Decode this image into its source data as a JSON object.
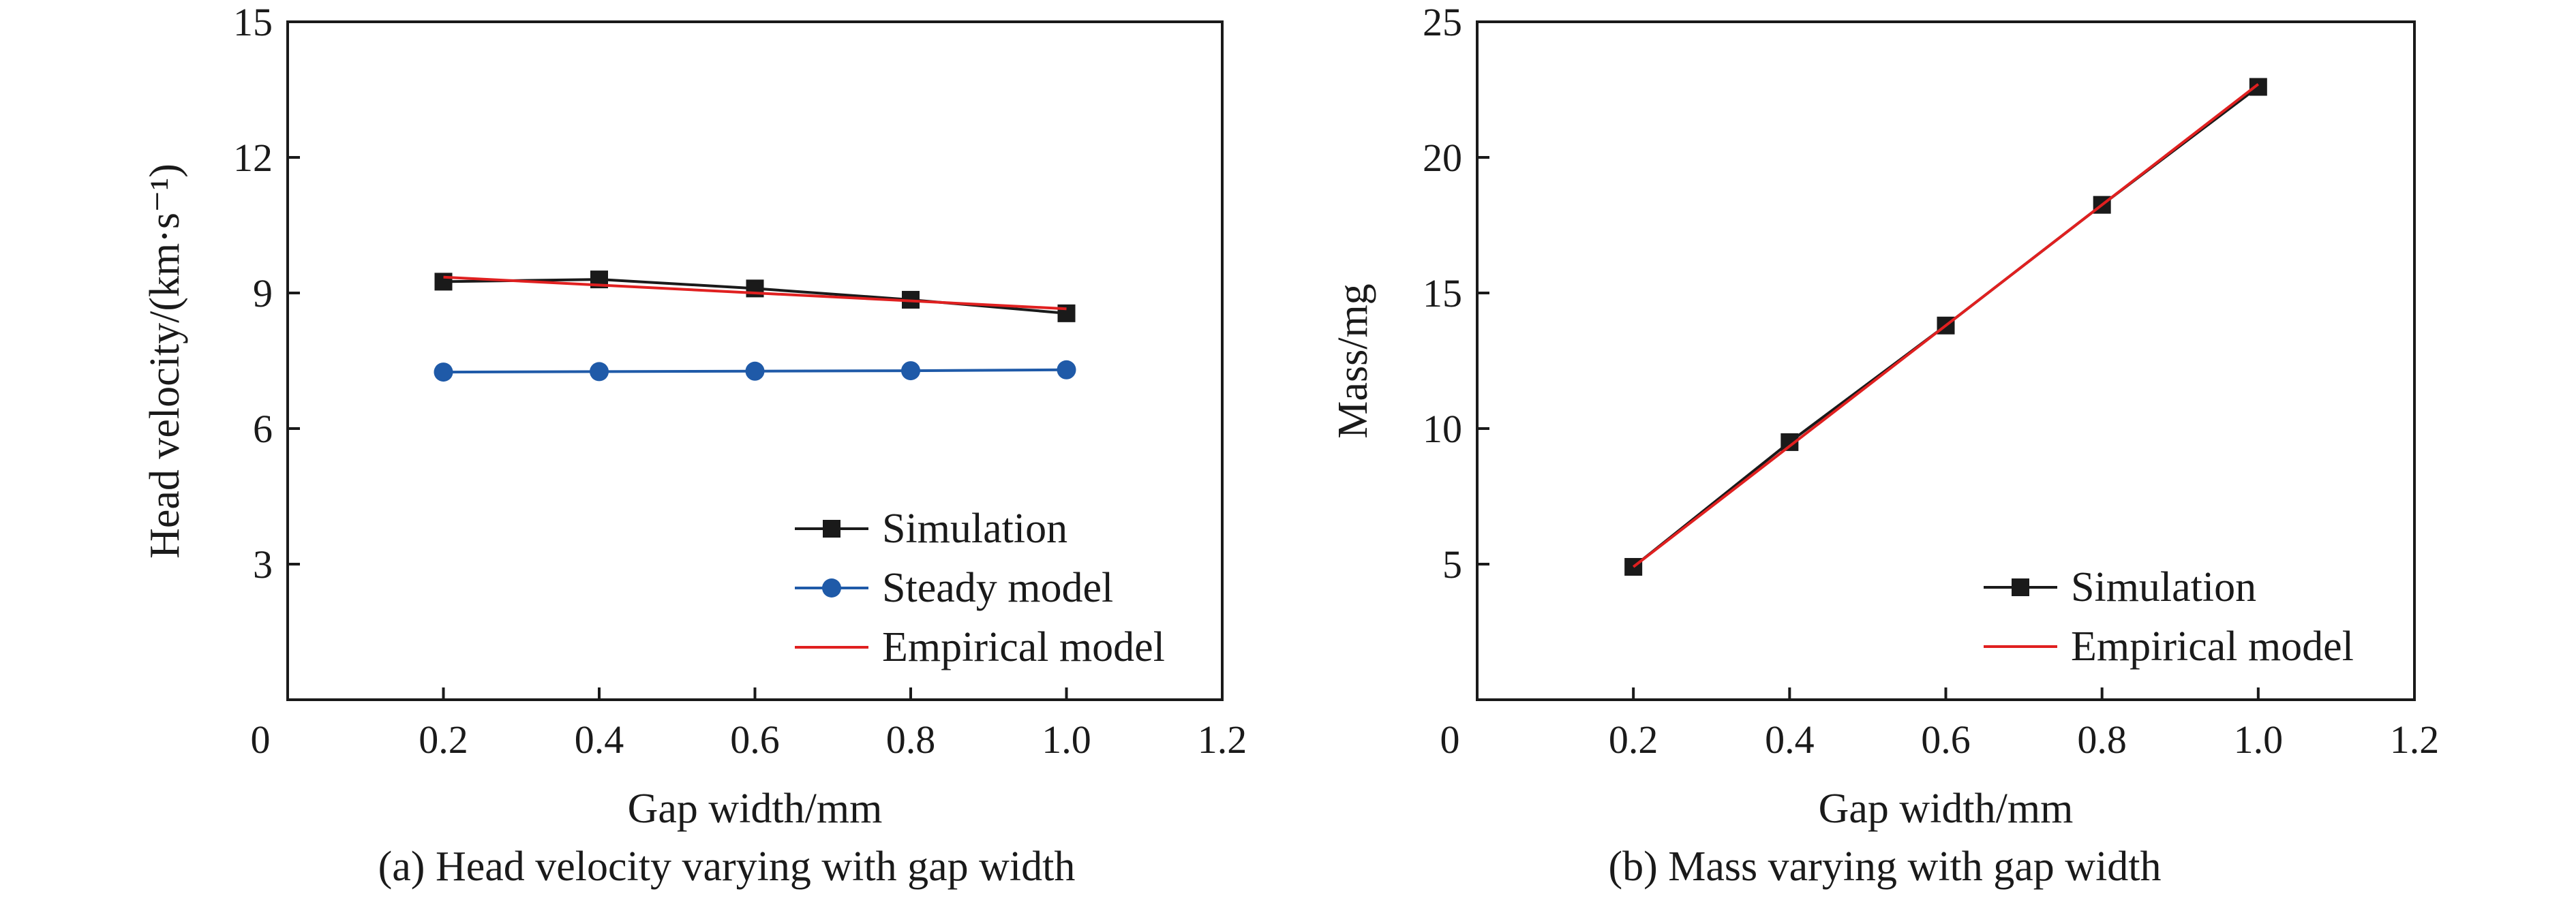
{
  "chart_data": [
    {
      "type": "line",
      "caption": "(a) Head velocity varying with gap width",
      "xlabel": "Gap width/mm",
      "ylabel": "Head velocity/(km·s⁻¹)",
      "xlim": [
        0,
        1.2
      ],
      "ylim": [
        0,
        15
      ],
      "x_ticks": [
        "0",
        "0.2",
        "0.4",
        "0.6",
        "0.8",
        "1.0",
        "1.2"
      ],
      "y_ticks": [
        "3",
        "6",
        "9",
        "12",
        "15"
      ],
      "grid": false,
      "legend_position": "bottom-right",
      "series": [
        {
          "name": "Simulation",
          "color": "#1a1a1a",
          "marker": "square",
          "x": [
            0.2,
            0.4,
            0.6,
            0.8,
            1.0
          ],
          "y": [
            9.25,
            9.3,
            9.1,
            8.85,
            8.55
          ]
        },
        {
          "name": "Steady model",
          "color": "#1f5aa8",
          "marker": "circle",
          "x": [
            0.2,
            0.4,
            0.6,
            0.8,
            1.0
          ],
          "y": [
            7.25,
            7.26,
            7.27,
            7.28,
            7.3
          ]
        },
        {
          "name": "Empirical model",
          "color": "#e02020",
          "marker": "none",
          "x": [
            0.2,
            1.0
          ],
          "y": [
            9.35,
            8.65
          ]
        }
      ]
    },
    {
      "type": "line",
      "caption": "(b) Mass varying with gap width",
      "xlabel": "Gap width/mm",
      "ylabel": "Mass/mg",
      "xlim": [
        0,
        1.2
      ],
      "ylim": [
        0,
        25
      ],
      "x_ticks": [
        "0",
        "0.2",
        "0.4",
        "0.6",
        "0.8",
        "1.0",
        "1.2"
      ],
      "y_ticks": [
        "5",
        "10",
        "15",
        "20",
        "25"
      ],
      "grid": false,
      "legend_position": "bottom-right",
      "series": [
        {
          "name": "Simulation",
          "color": "#1a1a1a",
          "marker": "square",
          "x": [
            0.2,
            0.4,
            0.6,
            0.8,
            1.0
          ],
          "y": [
            4.9,
            9.5,
            13.8,
            18.25,
            22.6
          ]
        },
        {
          "name": "Empirical model",
          "color": "#e02020",
          "marker": "none",
          "x": [
            0.2,
            1.0
          ],
          "y": [
            4.9,
            22.7
          ]
        }
      ]
    }
  ]
}
